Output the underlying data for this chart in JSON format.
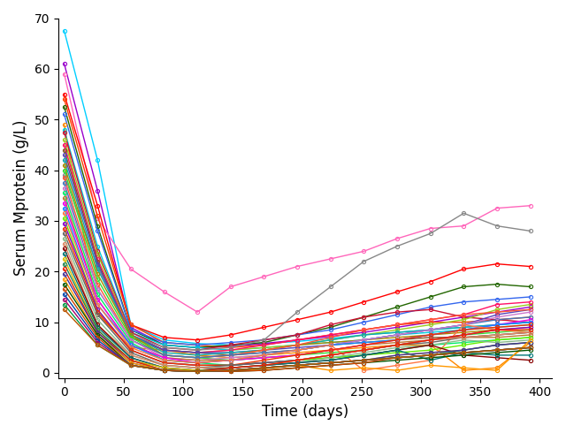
{
  "xlabel": "Time (days)",
  "ylabel": "Serum Mprotein (g/L)",
  "xlim": [
    -5,
    410
  ],
  "ylim": [
    -1,
    70
  ],
  "xticks": [
    0,
    50,
    100,
    150,
    200,
    250,
    300,
    350,
    400
  ],
  "yticks": [
    0,
    10,
    20,
    30,
    40,
    50,
    60,
    70
  ],
  "timepoints": [
    0,
    28,
    56,
    84,
    112,
    140,
    168,
    196,
    224,
    252,
    280,
    308,
    336,
    364,
    392
  ],
  "patients": [
    {
      "color": "#00CFFF",
      "values": [
        67.5,
        42,
        9.5,
        6.5,
        5.8,
        5.5,
        5.8,
        6.2,
        6.8,
        7.5,
        8.0,
        8.5,
        9.0,
        9.5,
        10.0
      ]
    },
    {
      "color": "#9900CC",
      "values": [
        61.0,
        36,
        9.0,
        5.5,
        5.0,
        5.2,
        5.8,
        6.5,
        7.2,
        8.0,
        9.0,
        10.0,
        11.0,
        12.0,
        13.0
      ]
    },
    {
      "color": "#FF66BB",
      "values": [
        59.0,
        30.5,
        20.5,
        16.0,
        12.0,
        17.0,
        19.0,
        21.0,
        22.5,
        24.0,
        26.5,
        28.5,
        29.0,
        32.5,
        33.0
      ]
    },
    {
      "color": "#FF0000",
      "values": [
        55.0,
        33.0,
        9.5,
        7.0,
        6.5,
        7.5,
        9.0,
        10.5,
        12.0,
        14.0,
        16.0,
        18.0,
        20.5,
        21.5,
        21.0
      ]
    },
    {
      "color": "#FF4400",
      "values": [
        54.0,
        31.0,
        9.5,
        6.0,
        5.5,
        5.0,
        5.5,
        6.5,
        7.5,
        8.5,
        9.5,
        10.0,
        10.0,
        10.5,
        11.0
      ]
    },
    {
      "color": "#226600",
      "values": [
        52.5,
        29.0,
        8.5,
        5.5,
        5.0,
        5.5,
        6.0,
        7.5,
        9.0,
        11.0,
        13.0,
        15.0,
        17.0,
        17.5,
        17.0
      ]
    },
    {
      "color": "#3366EE",
      "values": [
        51.0,
        28.0,
        8.5,
        6.0,
        5.5,
        6.0,
        6.5,
        7.5,
        8.5,
        10.0,
        11.5,
        13.0,
        14.0,
        14.5,
        15.0
      ]
    },
    {
      "color": "#FF8800",
      "values": [
        49.0,
        11.5,
        5.0,
        4.5,
        3.5,
        3.0,
        3.5,
        4.0,
        4.5,
        5.0,
        5.5,
        5.5,
        0.5,
        1.0,
        6.0
      ]
    },
    {
      "color": "#00CCDD",
      "values": [
        48.0,
        25.0,
        8.0,
        5.5,
        5.0,
        4.5,
        5.0,
        5.5,
        6.0,
        6.5,
        7.5,
        8.0,
        8.5,
        9.0,
        9.5
      ]
    },
    {
      "color": "#CC1133",
      "values": [
        47.5,
        24.0,
        8.0,
        5.0,
        4.5,
        5.5,
        6.5,
        7.5,
        9.5,
        11.0,
        12.0,
        12.5,
        11.0,
        10.5,
        10.0
      ]
    },
    {
      "color": "#99CC22",
      "values": [
        46.0,
        23.5,
        7.5,
        4.5,
        4.0,
        4.5,
        5.0,
        5.5,
        6.5,
        7.5,
        8.5,
        9.5,
        10.5,
        12.5,
        13.5
      ]
    },
    {
      "color": "#FF1166",
      "values": [
        45.0,
        22.5,
        7.5,
        4.5,
        4.0,
        4.5,
        5.5,
        6.5,
        7.5,
        8.5,
        9.5,
        10.5,
        11.5,
        13.5,
        14.0
      ]
    },
    {
      "color": "#888888",
      "values": [
        39.0,
        21.0,
        7.5,
        5.0,
        4.5,
        5.0,
        6.5,
        12.0,
        17.0,
        22.0,
        25.0,
        27.5,
        31.5,
        29.0,
        28.0
      ]
    },
    {
      "color": "#885522",
      "values": [
        44.0,
        22.0,
        7.0,
        4.5,
        4.0,
        3.5,
        4.0,
        4.5,
        5.5,
        6.0,
        6.5,
        7.0,
        7.0,
        7.5,
        8.0
      ]
    },
    {
      "color": "#5544BB",
      "values": [
        43.0,
        21.5,
        7.5,
        4.5,
        4.0,
        4.0,
        4.5,
        5.0,
        5.5,
        6.5,
        7.5,
        8.5,
        9.5,
        11.5,
        12.5
      ]
    },
    {
      "color": "#11AAAA",
      "values": [
        42.0,
        20.5,
        7.5,
        4.0,
        3.5,
        4.0,
        4.5,
        5.5,
        6.5,
        7.5,
        8.0,
        8.5,
        9.0,
        9.5,
        10.0
      ]
    },
    {
      "color": "#AA8800",
      "values": [
        41.0,
        19.5,
        7.5,
        3.5,
        3.0,
        3.5,
        4.5,
        5.5,
        6.0,
        6.5,
        7.0,
        7.5,
        8.0,
        8.5,
        9.0
      ]
    },
    {
      "color": "#33DD33",
      "values": [
        40.0,
        18.5,
        7.0,
        3.5,
        3.0,
        2.5,
        3.0,
        3.5,
        4.0,
        4.5,
        5.5,
        6.5,
        7.5,
        8.0,
        8.5
      ]
    },
    {
      "color": "#FF5533",
      "values": [
        38.5,
        17.5,
        6.5,
        3.5,
        3.0,
        3.5,
        4.5,
        5.5,
        7.0,
        8.5,
        9.5,
        10.5,
        11.5,
        12.0,
        12.5
      ]
    },
    {
      "color": "#4477BB",
      "values": [
        37.5,
        16.5,
        6.5,
        3.5,
        3.0,
        3.5,
        4.0,
        4.5,
        5.5,
        6.5,
        7.5,
        8.5,
        9.5,
        10.5,
        11.0
      ]
    },
    {
      "color": "#CC77CC",
      "values": [
        36.5,
        16.5,
        6.5,
        3.0,
        2.5,
        3.0,
        3.5,
        4.5,
        5.5,
        6.5,
        7.5,
        8.5,
        9.5,
        11.0,
        12.0
      ]
    },
    {
      "color": "#00EE66",
      "values": [
        35.5,
        15.5,
        6.0,
        2.5,
        2.0,
        1.5,
        2.0,
        2.5,
        3.0,
        3.5,
        4.5,
        5.5,
        6.0,
        6.5,
        7.0
      ]
    },
    {
      "color": "#BB7733",
      "values": [
        34.5,
        14.5,
        5.5,
        3.0,
        2.5,
        2.5,
        3.0,
        3.5,
        4.5,
        5.5,
        6.0,
        6.5,
        7.0,
        7.0,
        7.5
      ]
    },
    {
      "color": "#EE00EE",
      "values": [
        33.5,
        14.5,
        5.5,
        3.0,
        2.0,
        2.5,
        3.0,
        3.5,
        4.5,
        5.5,
        6.5,
        7.5,
        8.5,
        9.5,
        10.5
      ]
    },
    {
      "color": "#1188FF",
      "values": [
        32.5,
        13.5,
        5.5,
        2.5,
        2.0,
        2.5,
        3.5,
        4.5,
        5.5,
        6.0,
        6.5,
        7.5,
        8.5,
        9.5,
        10.0
      ]
    },
    {
      "color": "#FF7744",
      "values": [
        31.5,
        13.5,
        5.0,
        2.5,
        2.0,
        2.5,
        3.5,
        4.5,
        5.5,
        0.5,
        1.5,
        2.5,
        9.5,
        8.5,
        8.0
      ]
    },
    {
      "color": "#66EE00",
      "values": [
        30.5,
        12.5,
        4.5,
        2.0,
        1.5,
        1.5,
        2.0,
        2.5,
        3.0,
        3.5,
        4.0,
        4.5,
        5.5,
        6.5,
        7.0
      ]
    },
    {
      "color": "#8800CC",
      "values": [
        29.5,
        12.5,
        4.5,
        2.0,
        1.5,
        1.5,
        2.0,
        2.5,
        3.5,
        4.5,
        5.5,
        6.5,
        7.5,
        8.5,
        9.0
      ]
    },
    {
      "color": "#EE3300",
      "values": [
        28.5,
        12.0,
        4.5,
        2.0,
        1.5,
        1.5,
        2.5,
        3.5,
        4.5,
        5.5,
        6.5,
        7.5,
        8.5,
        9.0,
        9.5
      ]
    },
    {
      "color": "#666666",
      "values": [
        27.5,
        11.5,
        4.0,
        1.5,
        1.0,
        1.5,
        2.0,
        2.5,
        3.5,
        4.5,
        5.5,
        6.0,
        7.0,
        7.5,
        8.0
      ]
    },
    {
      "color": "#88BB88",
      "values": [
        26.5,
        10.5,
        3.5,
        1.5,
        1.0,
        1.0,
        1.5,
        2.0,
        3.0,
        4.0,
        5.0,
        5.5,
        6.5,
        6.0,
        6.5
      ]
    },
    {
      "color": "#DD8866",
      "values": [
        25.5,
        9.5,
        3.5,
        1.5,
        1.0,
        1.0,
        1.5,
        2.5,
        3.5,
        4.5,
        5.5,
        6.5,
        7.0,
        7.5,
        8.0
      ]
    },
    {
      "color": "#880000",
      "values": [
        24.5,
        9.5,
        3.0,
        1.0,
        0.5,
        1.0,
        1.5,
        2.0,
        2.5,
        3.5,
        4.5,
        5.5,
        3.5,
        3.0,
        2.5
      ]
    },
    {
      "color": "#007777",
      "values": [
        23.5,
        9.0,
        3.0,
        1.0,
        0.5,
        1.0,
        1.5,
        2.0,
        2.5,
        3.5,
        4.5,
        2.5,
        4.0,
        3.5,
        3.5
      ]
    },
    {
      "color": "#DDBB00",
      "values": [
        22.5,
        8.5,
        2.5,
        1.0,
        0.5,
        0.5,
        1.0,
        1.5,
        2.0,
        2.5,
        3.5,
        4.0,
        4.5,
        5.5,
        6.0
      ]
    },
    {
      "color": "#228855",
      "values": [
        21.5,
        8.5,
        2.5,
        0.5,
        0.3,
        0.5,
        1.0,
        1.5,
        2.0,
        2.5,
        3.0,
        3.5,
        4.5,
        5.5,
        6.0
      ]
    },
    {
      "color": "#EE2200",
      "values": [
        20.5,
        8.0,
        2.5,
        0.5,
        0.3,
        1.0,
        1.5,
        2.5,
        3.5,
        4.5,
        5.5,
        6.5,
        7.5,
        8.5,
        8.5
      ]
    },
    {
      "color": "#443399",
      "values": [
        19.5,
        8.0,
        2.0,
        0.5,
        0.3,
        0.5,
        1.0,
        1.5,
        2.0,
        2.5,
        3.5,
        4.0,
        4.5,
        5.5,
        6.0
      ]
    },
    {
      "color": "#FF9900",
      "values": [
        18.5,
        7.5,
        2.0,
        0.5,
        0.3,
        0.3,
        0.8,
        1.5,
        0.5,
        1.0,
        0.5,
        1.5,
        1.0,
        0.5,
        6.5
      ]
    },
    {
      "color": "#005500",
      "values": [
        17.5,
        7.5,
        1.5,
        0.5,
        0.3,
        0.3,
        0.5,
        1.0,
        1.5,
        2.0,
        2.5,
        3.0,
        3.5,
        4.0,
        4.5
      ]
    },
    {
      "color": "#CC4400",
      "values": [
        16.5,
        7.0,
        1.5,
        0.5,
        0.3,
        0.3,
        0.5,
        1.0,
        1.5,
        2.0,
        3.0,
        3.5,
        4.0,
        4.5,
        5.0
      ]
    },
    {
      "color": "#0044AA",
      "values": [
        15.5,
        6.5,
        1.5,
        0.5,
        0.3,
        0.5,
        1.0,
        1.5,
        2.0,
        2.5,
        3.0,
        3.5,
        4.0,
        4.5,
        5.0
      ]
    },
    {
      "color": "#AA0066",
      "values": [
        14.5,
        6.0,
        1.5,
        0.5,
        0.3,
        0.5,
        1.0,
        1.5,
        2.0,
        2.5,
        3.0,
        3.5,
        4.0,
        4.5,
        5.0
      ]
    },
    {
      "color": "#009944",
      "values": [
        13.5,
        5.5,
        1.5,
        0.5,
        0.3,
        0.5,
        1.0,
        1.5,
        2.0,
        2.5,
        3.0,
        3.5,
        4.0,
        4.5,
        5.0
      ]
    },
    {
      "color": "#BB5500",
      "values": [
        12.5,
        5.5,
        1.5,
        0.5,
        0.3,
        0.5,
        1.0,
        1.5,
        2.0,
        2.5,
        3.0,
        3.5,
        4.0,
        4.5,
        5.0
      ]
    }
  ]
}
